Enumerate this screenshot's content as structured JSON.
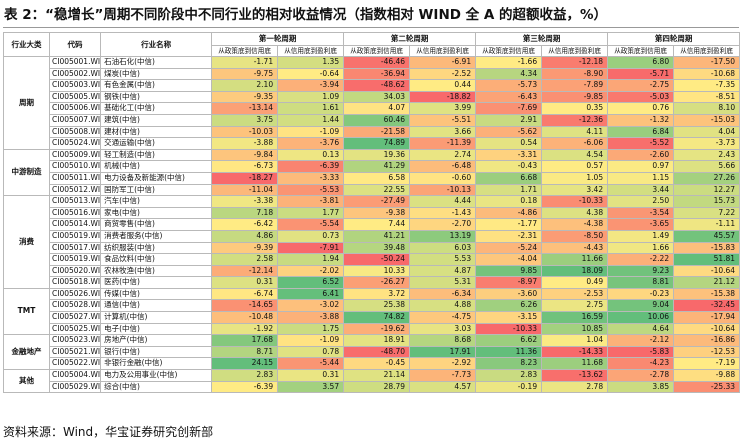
{
  "title": "表 2：“稳增长”周期不同阶段中不同行业的相对收益情况（指数相对 WIND 全 A 的超额收益，%）",
  "source": "资料来源：Wind，华宝证券研究创新部",
  "headers": {
    "sector": "行业大类",
    "code": "代码",
    "name": "行业名称",
    "cycles": [
      "第一轮周期",
      "第二轮周期",
      "第三轮周期",
      "第四轮周期"
    ],
    "phases": [
      "从政策底到信用底",
      "从信用底到盈利底"
    ]
  },
  "colors": {
    "min": "#f8696b",
    "mid": "#ffeb84",
    "max": "#63be7b"
  },
  "groups": [
    {
      "sector": "周期",
      "rows": [
        {
          "code": "CI005001.WI",
          "name": "石油石化(中信)",
          "values": [
            "-1.71",
            "1.35",
            "-46.46",
            "-6.91",
            "-1.66",
            "-12.18",
            "6.80",
            "-17.50"
          ]
        },
        {
          "code": "CI005002.WI",
          "name": "煤炭(中信)",
          "values": [
            "-9.75",
            "-0.64",
            "-36.94",
            "-2.52",
            "4.34",
            "-8.90",
            "-5.71",
            "-10.68"
          ]
        },
        {
          "code": "CI005003.WI",
          "name": "有色金属(中信)",
          "values": [
            "2.10",
            "-3.94",
            "-48.62",
            "0.44",
            "-5.73",
            "-7.89",
            "-2.75",
            "-7.35"
          ]
        },
        {
          "code": "CI005005.WI",
          "name": "钢铁(中信)",
          "values": [
            "-9.35",
            "1.09",
            "34.03",
            "-18.82",
            "-6.43",
            "-9.85",
            "-5.03",
            "-8.51"
          ]
        },
        {
          "code": "CI005006.WI",
          "name": "基础化工(中信)",
          "values": [
            "-13.14",
            "1.61",
            "4.07",
            "3.99",
            "-7.69",
            "0.35",
            "0.76",
            "8.10"
          ]
        },
        {
          "code": "CI005007.WI",
          "name": "建筑(中信)",
          "values": [
            "3.75",
            "1.44",
            "60.46",
            "-5.51",
            "2.91",
            "-12.36",
            "-1.32",
            "-15.03"
          ]
        },
        {
          "code": "CI005008.WI",
          "name": "建材(中信)",
          "values": [
            "-10.03",
            "-1.09",
            "-21.58",
            "3.66",
            "-5.62",
            "4.11",
            "6.84",
            "4.04"
          ]
        },
        {
          "code": "CI005024.WI",
          "name": "交通运输(中信)",
          "values": [
            "-3.88",
            "-3.76",
            "74.89",
            "-11.39",
            "0.54",
            "-6.06",
            "-5.52",
            "-3.73"
          ]
        }
      ]
    },
    {
      "sector": "中游制造",
      "rows": [
        {
          "code": "CI005009.WI",
          "name": "轻工制造(中信)",
          "values": [
            "-9.84",
            "0.13",
            "19.36",
            "2.74",
            "-3.31",
            "4.54",
            "-2.60",
            "2.43"
          ]
        },
        {
          "code": "CI005010.WI",
          "name": "机械(中信)",
          "values": [
            "-6.73",
            "-6.39",
            "41.29",
            "-6.48",
            "-0.43",
            "0.57",
            "0.97",
            "5.66"
          ]
        },
        {
          "code": "CI005011.WI",
          "name": "电力设备及新能源(中信)",
          "values": [
            "-18.27",
            "-3.33",
            "6.58",
            "-0.60",
            "6.68",
            "1.05",
            "1.15",
            "27.26"
          ]
        },
        {
          "code": "CI005012.WI",
          "name": "国防军工(中信)",
          "values": [
            "-11.04",
            "-5.53",
            "22.55",
            "-10.13",
            "1.71",
            "3.42",
            "3.44",
            "12.27"
          ]
        }
      ]
    },
    {
      "sector": "消费",
      "rows": [
        {
          "code": "CI005013.WI",
          "name": "汽车(中信)",
          "values": [
            "-3.38",
            "-3.81",
            "-27.49",
            "4.44",
            "0.18",
            "-10.33",
            "2.50",
            "15.73"
          ]
        },
        {
          "code": "CI005016.WI",
          "name": "家电(中信)",
          "values": [
            "7.18",
            "1.77",
            "-9.38",
            "-1.43",
            "-4.86",
            "4.38",
            "-3.54",
            "7.22"
          ]
        },
        {
          "code": "CI005014.WI",
          "name": "商贸零售(中信)",
          "values": [
            "-6.42",
            "-5.54",
            "7.44",
            "-2.70",
            "-1.77",
            "-4.38",
            "-3.65",
            "-1.11"
          ]
        },
        {
          "code": "CI005019.WI",
          "name": "消费者服务(中信)",
          "values": [
            "4.86",
            "0.73",
            "41.21",
            "13.19",
            "-2.31",
            "-8.50",
            "1.49",
            "45.57"
          ]
        },
        {
          "code": "CI005017.WI",
          "name": "纺织服装(中信)",
          "values": [
            "-9.39",
            "-7.91",
            "39.48",
            "6.03",
            "-5.24",
            "-4.43",
            "1.66",
            "-15.83"
          ]
        },
        {
          "code": "CI005019.WI",
          "name": "食品饮料(中信)",
          "values": [
            "2.58",
            "1.94",
            "-50.24",
            "5.53",
            "-4.04",
            "11.66",
            "-2.22",
            "51.81"
          ]
        },
        {
          "code": "CI005020.WI",
          "name": "农林牧渔(中信)",
          "values": [
            "-12.14",
            "-2.02",
            "10.33",
            "4.87",
            "9.85",
            "18.09",
            "9.23",
            "-10.64"
          ]
        },
        {
          "code": "CI005018.WI",
          "name": "医药(中信)",
          "values": [
            "0.31",
            "6.52",
            "-26.27",
            "5.31",
            "-8.97",
            "0.49",
            "8.81",
            "21.12"
          ]
        }
      ]
    },
    {
      "sector": "TMT",
      "rows": [
        {
          "code": "CI005026.WI",
          "name": "传媒(中信)",
          "values": [
            "-6.74",
            "6.41",
            "3.72",
            "-6.34",
            "-3.60",
            "-2.53",
            "-0.23",
            "-15.38"
          ]
        },
        {
          "code": "CI005028.WI",
          "name": "通信(中信)",
          "values": [
            "-14.65",
            "-3.02",
            "25.38",
            "4.88",
            "6.26",
            "2.75",
            "9.04",
            "-32.45"
          ]
        },
        {
          "code": "CI005027.WI",
          "name": "计算机(中信)",
          "values": [
            "-10.48",
            "-3.88",
            "74.82",
            "-4.75",
            "-3.15",
            "16.59",
            "10.06",
            "-17.94"
          ]
        },
        {
          "code": "CI005025.WI",
          "name": "电子(中信)",
          "values": [
            "-1.92",
            "1.75",
            "-19.62",
            "3.03",
            "-10.33",
            "10.85",
            "4.64",
            "-10.64"
          ]
        }
      ]
    },
    {
      "sector": "金融地产",
      "rows": [
        {
          "code": "CI005023.WI",
          "name": "房地产(中信)",
          "values": [
            "17.68",
            "-1.09",
            "18.91",
            "8.68",
            "6.62",
            "1.04",
            "-2.12",
            "-16.86"
          ]
        },
        {
          "code": "CI005021.WI",
          "name": "银行(中信)",
          "values": [
            "8.71",
            "0.78",
            "-48.70",
            "17.91",
            "11.36",
            "-14.33",
            "-5.83",
            "-12.53"
          ]
        },
        {
          "code": "CI005022.WI",
          "name": "非银行金融(中信)",
          "values": [
            "24.15",
            "-5.44",
            "-0.45",
            "-2.92",
            "8.23",
            "11.68",
            "-4.23",
            "-7.19"
          ]
        }
      ]
    },
    {
      "sector": "其他",
      "rows": [
        {
          "code": "CI005004.WI",
          "name": "电力及公用事业(中信)",
          "values": [
            "2.83",
            "0.31",
            "21.14",
            "-7.73",
            "2.83",
            "-13.62",
            "-2.78",
            "-9.88"
          ]
        },
        {
          "code": "CI005029.WI",
          "name": "综合(中信)",
          "values": [
            "-6.39",
            "3.57",
            "28.79",
            "4.57",
            "-0.19",
            "2.78",
            "3.85",
            "-25.33"
          ]
        }
      ]
    }
  ]
}
